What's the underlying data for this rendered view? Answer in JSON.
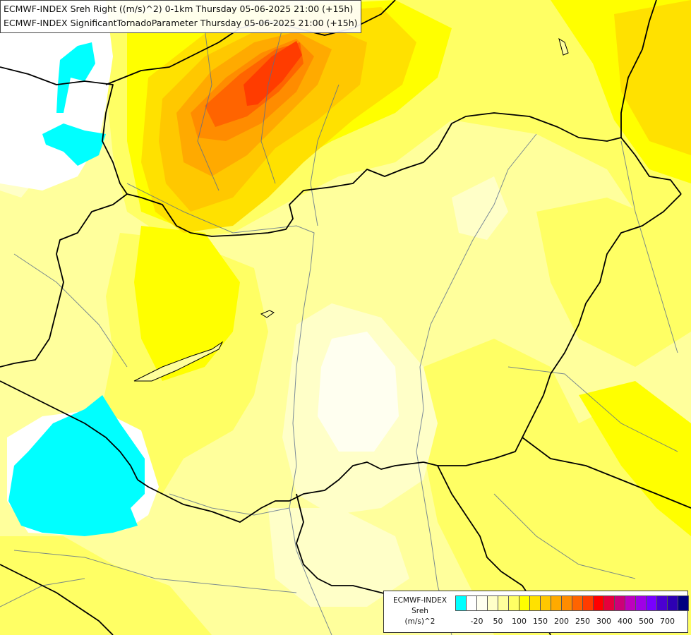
{
  "title": {
    "line1": "ECMWF-INDEX Sreh Right ((m/s)^2) 0-1km Thursday 05-06-2025 21:00 (+15h)",
    "line2": "ECMWF-INDEX SignificantTornadoParameter Thursday 05-06-2025 21:00 (+15h)"
  },
  "legend": {
    "caption": [
      "ECMWF-INDEX",
      "Sreh",
      "(m/s)^2"
    ],
    "colors": [
      "#00ffff",
      "#ffffff",
      "#fffff0",
      "#ffffc8",
      "#ffff9c",
      "#ffff64",
      "#ffff00",
      "#ffe100",
      "#ffc800",
      "#ffaa00",
      "#ff8c00",
      "#ff6400",
      "#ff3c00",
      "#ff0000",
      "#e6003c",
      "#cd0078",
      "#be00be",
      "#a000e6",
      "#7800ff",
      "#4b00d2",
      "#2d00b4",
      "#000080"
    ],
    "ticks": [
      {
        "label": "-20",
        "index": 1
      },
      {
        "label": "50",
        "index": 3
      },
      {
        "label": "100",
        "index": 5
      },
      {
        "label": "150",
        "index": 7
      },
      {
        "label": "200",
        "index": 9
      },
      {
        "label": "250",
        "index": 11
      },
      {
        "label": "300",
        "index": 13
      },
      {
        "label": "400",
        "index": 15
      },
      {
        "label": "500",
        "index": 17
      },
      {
        "label": "700",
        "index": 19
      }
    ]
  },
  "map_colors": {
    "background": "#ffff9c",
    "pale": "#ffffc8",
    "palest": "#fffff0",
    "yellow": "#ffff64",
    "bright_yellow": "#ffff00",
    "gold": "#ffe100",
    "amber": "#ffc800",
    "orange": "#ffaa00",
    "dark_orange": "#ff8c00",
    "red_orange": "#ff6400",
    "red": "#ff3c00",
    "cyan": "#00ffff",
    "white": "#ffffff",
    "border": "#000000",
    "river": "#5a6e8c"
  }
}
